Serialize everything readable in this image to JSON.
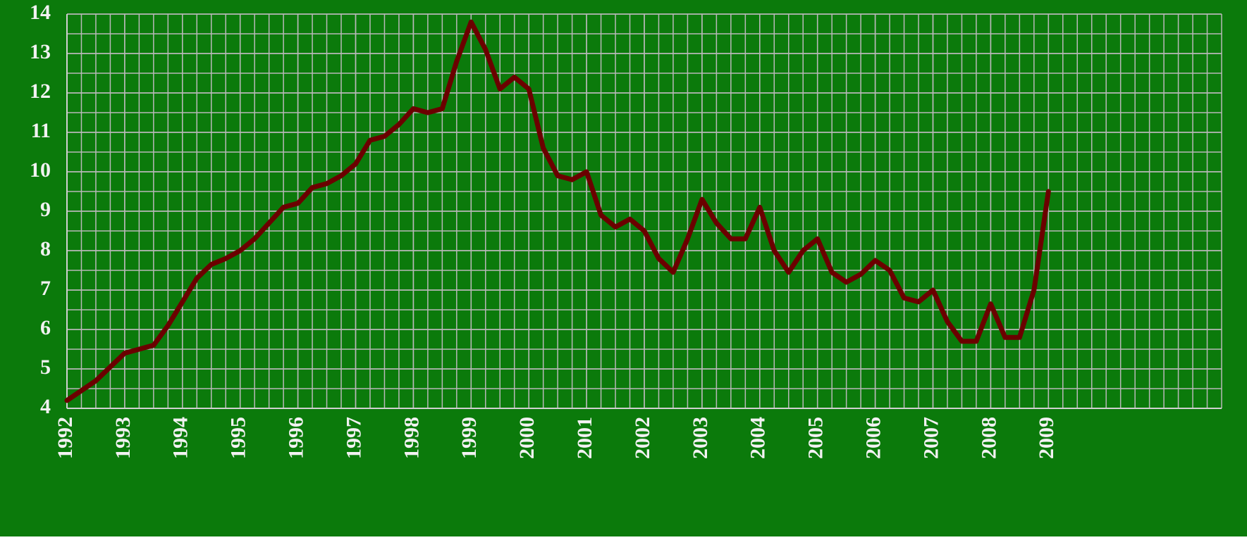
{
  "chart_data": {
    "type": "line",
    "x": [
      1992,
      1992.25,
      1992.5,
      1992.75,
      1993,
      1993.25,
      1993.5,
      1993.75,
      1994,
      1994.25,
      1994.5,
      1994.75,
      1995,
      1995.25,
      1995.5,
      1995.75,
      1996,
      1996.25,
      1996.5,
      1996.75,
      1997,
      1997.25,
      1997.5,
      1997.75,
      1998,
      1998.25,
      1998.5,
      1998.75,
      1999,
      1999.25,
      1999.5,
      1999.75,
      2000,
      2000.25,
      2000.5,
      2000.75,
      2001,
      2001.25,
      2001.5,
      2001.75,
      2002,
      2002.25,
      2002.5,
      2002.75,
      2003,
      2003.25,
      2003.5,
      2003.75,
      2004,
      2004.25,
      2004.5,
      2004.75,
      2005,
      2005.25,
      2005.5,
      2005.75,
      2006,
      2006.25,
      2006.5,
      2006.75,
      2007,
      2007.25,
      2007.5,
      2007.75,
      2008,
      2008.25,
      2008.5,
      2008.75,
      2009
    ],
    "series": [
      {
        "color": "#6b0000",
        "values": [
          4.2,
          4.45,
          4.7,
          5.05,
          5.4,
          5.5,
          5.6,
          6.1,
          6.7,
          7.3,
          7.65,
          7.8,
          8.0,
          8.3,
          8.7,
          9.1,
          9.2,
          9.6,
          9.7,
          9.9,
          10.2,
          10.8,
          10.9,
          11.2,
          11.6,
          11.5,
          11.6,
          12.8,
          13.8,
          13.1,
          12.1,
          12.4,
          12.1,
          10.6,
          9.9,
          9.8,
          10.0,
          8.9,
          8.6,
          8.8,
          8.5,
          7.8,
          7.45,
          8.3,
          9.3,
          8.7,
          8.3,
          8.3,
          9.1,
          8.0,
          7.45,
          8.0,
          8.3,
          7.45,
          7.2,
          7.4,
          7.75,
          7.5,
          6.8,
          6.7,
          7.0,
          6.2,
          5.7,
          5.7,
          6.65,
          5.8,
          5.8,
          7.0,
          9.5
        ]
      }
    ],
    "xlim": [
      1992,
      2012
    ],
    "xticks": [
      1992,
      1993,
      1994,
      1995,
      1996,
      1997,
      1998,
      1999,
      2000,
      2001,
      2002,
      2003,
      2004,
      2005,
      2006,
      2007,
      2008,
      2009
    ],
    "ylim": [
      4,
      14
    ],
    "yticks": [
      4,
      5,
      6,
      7,
      8,
      9,
      10,
      11,
      12,
      13,
      14
    ],
    "grid": true,
    "background": "#0b7a0b"
  }
}
